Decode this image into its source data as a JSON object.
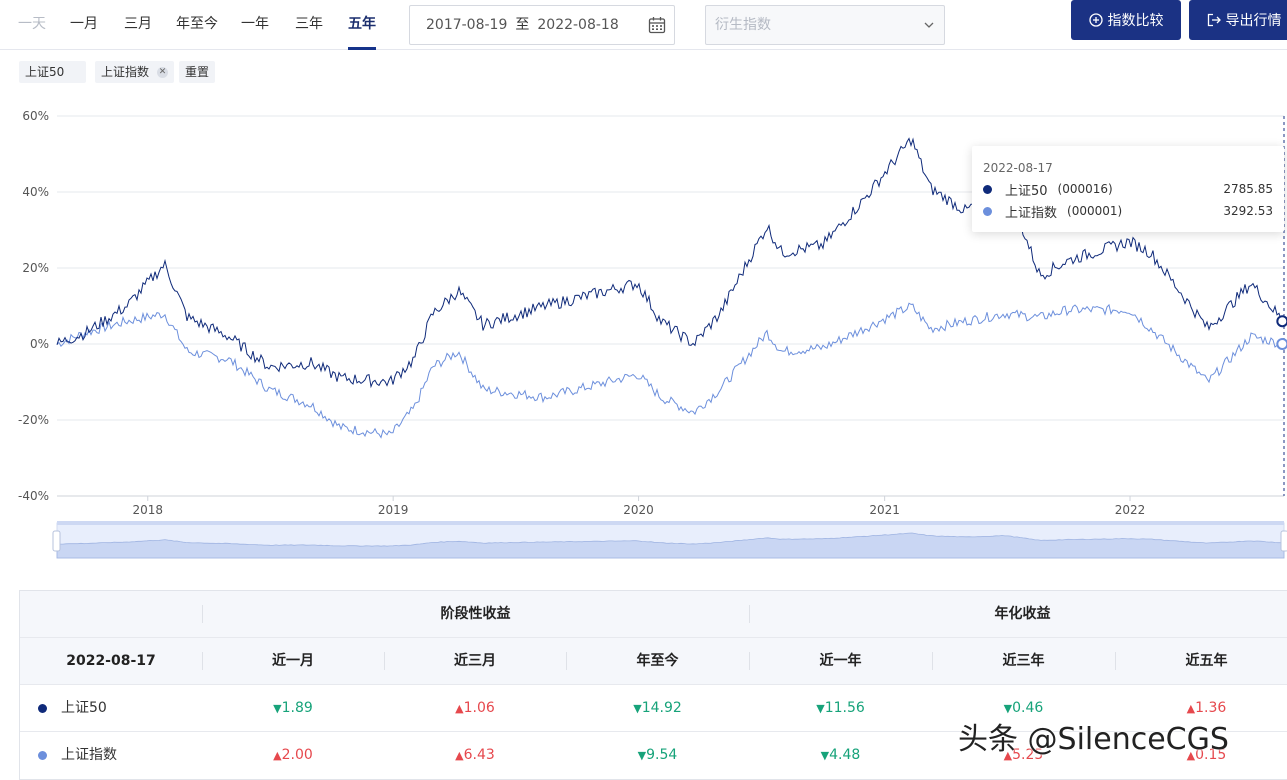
{
  "periods": [
    "一天",
    "一月",
    "三月",
    "年至今",
    "一年",
    "三年",
    "五年"
  ],
  "period_disabled": "一天",
  "period_active": "五年",
  "date_range": {
    "start": "2017-08-19",
    "sep": "至",
    "end": "2022-08-18"
  },
  "derivative_placeholder": "衍生指数",
  "buttons": {
    "compare": "指数比较",
    "export": "导出行情"
  },
  "tags": [
    {
      "label": "上证50",
      "removable": false
    },
    {
      "label": "上证指数",
      "removable": true
    }
  ],
  "reset_label": "重置",
  "colors": {
    "series1": "#0f2a7a",
    "series2": "#6c8fdc",
    "primary_button": "#1b3284",
    "up": "#e6484d",
    "down": "#17a37a"
  },
  "chart_data": {
    "type": "line",
    "x_ticks": [
      "2018",
      "2019",
      "2020",
      "2021",
      "2022"
    ],
    "y_ticks": [
      "60%",
      "40%",
      "20%",
      "0%",
      "-20%",
      "-40%"
    ],
    "ylim": [
      -40,
      60
    ],
    "x_range": [
      "2017-08-19",
      "2022-08-18"
    ],
    "grid": true,
    "series": [
      {
        "name": "上证50",
        "code": "000016",
        "color": "#0f2a7a",
        "x": [
          "2017-08-19",
          "2017-10-01",
          "2017-12-01",
          "2018-01-26",
          "2018-03-01",
          "2018-05-01",
          "2018-07-01",
          "2018-09-01",
          "2018-10-15",
          "2018-12-28",
          "2019-02-01",
          "2019-03-01",
          "2019-04-08",
          "2019-05-15",
          "2019-08-15",
          "2019-10-01",
          "2019-12-31",
          "2020-02-03",
          "2020-03-23",
          "2020-05-01",
          "2020-07-10",
          "2020-08-01",
          "2020-10-01",
          "2020-12-01",
          "2021-02-10",
          "2021-03-10",
          "2021-05-01",
          "2021-06-30",
          "2021-08-20",
          "2021-10-01",
          "2021-12-31",
          "2022-02-01",
          "2022-04-27",
          "2022-06-30",
          "2022-08-17"
        ],
        "values": [
          0,
          3,
          10,
          21,
          7,
          2,
          -6,
          -5,
          -9,
          -10,
          -4,
          8,
          14,
          5,
          10,
          12,
          16,
          6,
          0,
          8,
          31,
          24,
          26,
          38,
          54,
          41,
          35,
          42,
          18,
          22,
          27,
          24,
          4,
          16,
          6
        ]
      },
      {
        "name": "上证指数",
        "code": "000001",
        "color": "#6c8fdc",
        "x": [
          "2017-08-19",
          "2017-10-01",
          "2017-12-01",
          "2018-01-26",
          "2018-03-01",
          "2018-05-01",
          "2018-07-01",
          "2018-09-01",
          "2018-10-15",
          "2018-12-28",
          "2019-02-01",
          "2019-03-01",
          "2019-04-08",
          "2019-05-15",
          "2019-08-15",
          "2019-10-01",
          "2019-12-31",
          "2020-02-03",
          "2020-03-23",
          "2020-05-01",
          "2020-07-10",
          "2020-08-01",
          "2020-10-01",
          "2020-12-01",
          "2021-02-10",
          "2021-03-10",
          "2021-05-01",
          "2021-06-30",
          "2021-08-20",
          "2021-10-01",
          "2021-12-31",
          "2022-02-01",
          "2022-04-27",
          "2022-06-30",
          "2022-08-17"
        ],
        "values": [
          0,
          3,
          6,
          8,
          -2,
          -4,
          -12,
          -16,
          -22,
          -24,
          -17,
          -6,
          -2,
          -12,
          -14,
          -12,
          -8,
          -14,
          -18,
          -12,
          3,
          -2,
          -1,
          4,
          10,
          4,
          6,
          8,
          7,
          9,
          9,
          4,
          -10,
          2,
          0
        ]
      }
    ]
  },
  "tooltip": {
    "date": "2022-08-17",
    "rows": [
      {
        "name": "上证50",
        "code": "(000016)",
        "value": "2785.85",
        "color": "#0f2a7a"
      },
      {
        "name": "上证指数",
        "code": "(000001)",
        "value": "3292.53",
        "color": "#6c8fdc"
      }
    ]
  },
  "table": {
    "group_headers": [
      "阶段性收益",
      "年化收益"
    ],
    "date_header": "2022-08-17",
    "columns": [
      "近一月",
      "近三月",
      "年至今",
      "近一年",
      "近三年",
      "近五年"
    ],
    "rows": [
      {
        "name": "上证50",
        "color": "#0f2a7a",
        "cells": [
          {
            "dir": "down",
            "value": "1.89"
          },
          {
            "dir": "up",
            "value": "1.06"
          },
          {
            "dir": "down",
            "value": "14.92"
          },
          {
            "dir": "down",
            "value": "11.56"
          },
          {
            "dir": "down",
            "value": "0.46"
          },
          {
            "dir": "up",
            "value": "1.36"
          }
        ]
      },
      {
        "name": "上证指数",
        "color": "#6c8fdc",
        "cells": [
          {
            "dir": "up",
            "value": "2.00"
          },
          {
            "dir": "up",
            "value": "6.43"
          },
          {
            "dir": "down",
            "value": "9.54"
          },
          {
            "dir": "down",
            "value": "4.48"
          },
          {
            "dir": "up",
            "value": "5.25"
          },
          {
            "dir": "up",
            "value": "0.15"
          }
        ]
      }
    ]
  },
  "watermark": "头条 @SilenceCGS"
}
